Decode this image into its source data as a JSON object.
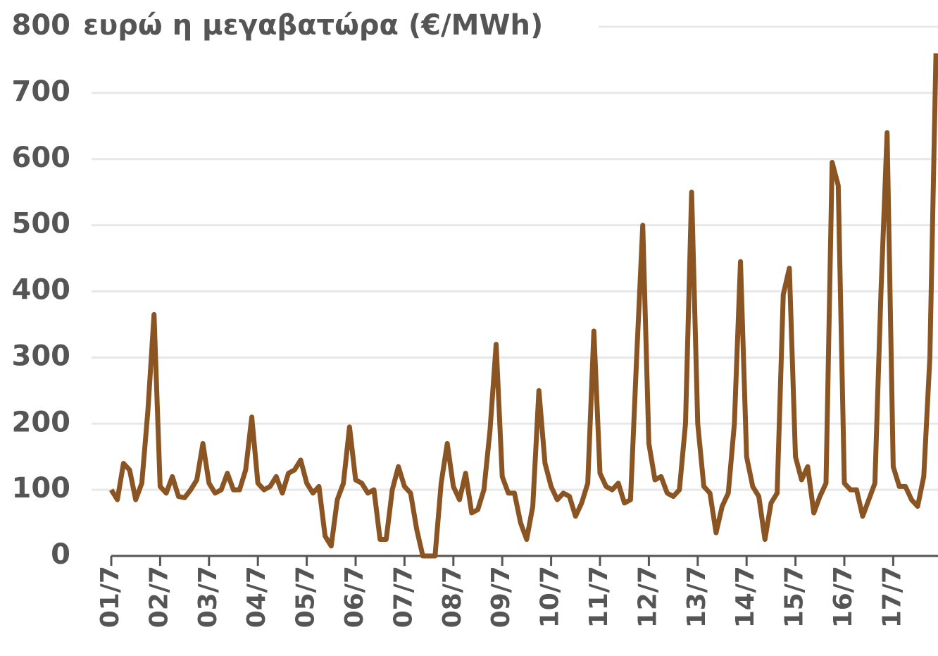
{
  "chart_data": {
    "type": "line",
    "title": "ευρώ η μεγαβατώρα (€/MWh)",
    "categories": [
      "01/7",
      null,
      null,
      null,
      null,
      null,
      null,
      null,
      "02/7",
      null,
      null,
      null,
      null,
      null,
      null,
      null,
      "03/7",
      null,
      null,
      null,
      null,
      null,
      null,
      null,
      "04/7",
      null,
      null,
      null,
      null,
      null,
      null,
      null,
      "05/7",
      null,
      null,
      null,
      null,
      null,
      null,
      null,
      "06/7",
      null,
      null,
      null,
      null,
      null,
      null,
      null,
      "07/7",
      null,
      null,
      null,
      null,
      null,
      null,
      null,
      "08/7",
      null,
      null,
      null,
      null,
      null,
      null,
      null,
      "09/7",
      null,
      null,
      null,
      null,
      null,
      null,
      null,
      "10/7",
      null,
      null,
      null,
      null,
      null,
      null,
      null,
      "11/7",
      null,
      null,
      null,
      null,
      null,
      null,
      null,
      "12/7",
      null,
      null,
      null,
      null,
      null,
      null,
      null,
      "13/7",
      null,
      null,
      null,
      null,
      null,
      null,
      null,
      "14/7",
      null,
      null,
      null,
      null,
      null,
      null,
      null,
      "15/7",
      null,
      null,
      null,
      null,
      null,
      null,
      null,
      "16/7",
      null,
      null,
      null,
      null,
      null,
      null,
      null,
      "17/7",
      null,
      null,
      null,
      null,
      null,
      null,
      null
    ],
    "series": [
      {
        "color": "#8b5523",
        "values": [
          100,
          85,
          140,
          130,
          85,
          110,
          220,
          365,
          105,
          95,
          120,
          90,
          88,
          100,
          115,
          170,
          110,
          95,
          100,
          125,
          100,
          100,
          130,
          210,
          110,
          100,
          105,
          120,
          95,
          125,
          130,
          145,
          110,
          95,
          105,
          30,
          15,
          85,
          110,
          195,
          115,
          110,
          95,
          100,
          25,
          25,
          100,
          135,
          105,
          95,
          40,
          0,
          0,
          0,
          110,
          170,
          105,
          85,
          125,
          65,
          70,
          100,
          190,
          320,
          120,
          95,
          95,
          50,
          25,
          75,
          250,
          140,
          105,
          85,
          95,
          90,
          60,
          80,
          110,
          340,
          125,
          105,
          100,
          110,
          80,
          85,
          300,
          500,
          170,
          115,
          120,
          95,
          90,
          100,
          200,
          550,
          200,
          105,
          95,
          35,
          75,
          95,
          200,
          445,
          150,
          105,
          90,
          25,
          80,
          95,
          395,
          435,
          150,
          115,
          135,
          65,
          90,
          110,
          595,
          560,
          110,
          100,
          100,
          60,
          85,
          110,
          400,
          640,
          135,
          105,
          105,
          85,
          75,
          120,
          300,
          760
        ]
      }
    ],
    "ylim": [
      0,
      800
    ],
    "yticks": [
      0,
      100,
      200,
      300,
      400,
      500,
      600,
      700,
      800
    ],
    "grid": true
  }
}
